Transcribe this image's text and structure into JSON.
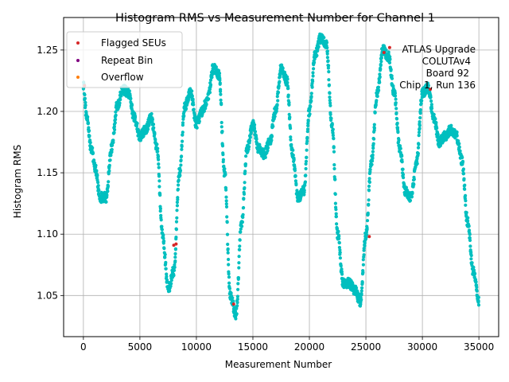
{
  "chart_data": {
    "type": "scatter",
    "title": "Histogram RMS vs Measurement Number for Channel 1",
    "xlabel": "Measurement Number",
    "ylabel": "Histogram RMS",
    "xlim": [
      -1750,
      36750
    ],
    "ylim": [
      1.0165,
      1.2765
    ],
    "grid": true,
    "x_ticks": [
      0,
      5000,
      10000,
      15000,
      20000,
      25000,
      30000,
      35000
    ],
    "x_tick_labels": [
      "0",
      "5000",
      "10000",
      "15000",
      "20000",
      "25000",
      "30000",
      "35000"
    ],
    "y_ticks": [
      1.05,
      1.1,
      1.15,
      1.2,
      1.25
    ],
    "y_tick_labels": [
      "1.05",
      "1.10",
      "1.15",
      "1.20",
      "1.25"
    ],
    "annotation": [
      "ATLAS Upgrade",
      "COLUTAv4",
      "Board 92",
      "Chip 1, Run 136"
    ],
    "legend": {
      "placement": "top-left",
      "entries": [
        {
          "label": "Flagged SEUs",
          "color": "#d62728"
        },
        {
          "label": "Repeat Bin",
          "color": "#800080"
        },
        {
          "label": "Overflow",
          "color": "#ff7f0e"
        }
      ]
    },
    "series": [
      {
        "name": "RMS",
        "color": "#00bfbf",
        "x_range": [
          0,
          35000
        ],
        "trend": {
          "x": [
            0,
            300,
            700,
            1000,
            1500,
            2000,
            2500,
            3000,
            3500,
            4000,
            4500,
            5000,
            5500,
            6000,
            6500,
            7000,
            7500,
            8000,
            8500,
            9000,
            9500,
            10000,
            10500,
            11000,
            11500,
            12000,
            12500,
            13000,
            13500,
            14000,
            14500,
            15000,
            15500,
            16000,
            16500,
            17000,
            17500,
            18000,
            18500,
            19000,
            19500,
            20000,
            20500,
            21000,
            21500,
            22000,
            22500,
            23000,
            23500,
            24000,
            24500,
            25000,
            25500,
            26000,
            26500,
            27000,
            27500,
            28000,
            28500,
            29000,
            29500,
            30000,
            30500,
            31000,
            31500,
            32000,
            32500,
            33000,
            33500,
            34000,
            34500,
            35000
          ],
          "y": [
            1.22,
            1.195,
            1.17,
            1.155,
            1.13,
            1.13,
            1.17,
            1.205,
            1.218,
            1.215,
            1.195,
            1.18,
            1.185,
            1.195,
            1.17,
            1.1,
            1.055,
            1.07,
            1.15,
            1.205,
            1.215,
            1.19,
            1.2,
            1.21,
            1.235,
            1.23,
            1.15,
            1.05,
            1.035,
            1.11,
            1.17,
            1.19,
            1.17,
            1.165,
            1.175,
            1.2,
            1.235,
            1.225,
            1.165,
            1.13,
            1.135,
            1.2,
            1.245,
            1.26,
            1.255,
            1.19,
            1.1,
            1.06,
            1.06,
            1.055,
            1.045,
            1.1,
            1.16,
            1.215,
            1.25,
            1.245,
            1.215,
            1.17,
            1.135,
            1.13,
            1.16,
            1.215,
            1.22,
            1.195,
            1.175,
            1.18,
            1.185,
            1.18,
            1.16,
            1.11,
            1.07,
            1.045
          ]
        }
      },
      {
        "name": "Flagged SEUs",
        "color": "#d62728",
        "points": [
          {
            "x": 100,
            "y": 1.221
          },
          {
            "x": 8000,
            "y": 1.091
          },
          {
            "x": 8200,
            "y": 1.092
          },
          {
            "x": 13300,
            "y": 1.043
          },
          {
            "x": 25300,
            "y": 1.098
          },
          {
            "x": 26600,
            "y": 1.248
          },
          {
            "x": 27100,
            "y": 1.252
          },
          {
            "x": 30700,
            "y": 1.218
          }
        ]
      }
    ]
  }
}
